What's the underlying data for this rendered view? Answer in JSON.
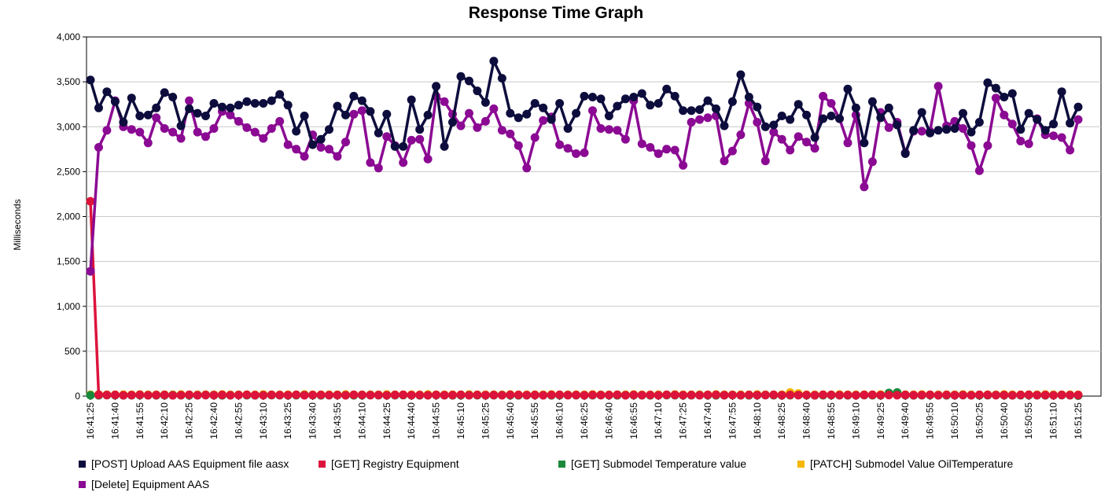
{
  "chart_data": {
    "type": "line",
    "title": "Response Time Graph",
    "xlabel": "",
    "ylabel": "Milliseconds",
    "ylim": [
      0,
      4000
    ],
    "yticks": [
      "0",
      "500",
      "1,000",
      "1,500",
      "2,000",
      "2,500",
      "3,000",
      "3,500",
      "4,000"
    ],
    "ytick_values": [
      0,
      500,
      1000,
      1500,
      2000,
      2500,
      3000,
      3500,
      4000
    ],
    "x_start": "16:41:25",
    "x_end": "16:51:40",
    "x_step_seconds": 5,
    "xtick_labels": [
      "16:41:25",
      "16:41:40",
      "16:41:55",
      "16:42:10",
      "16:42:25",
      "16:42:40",
      "16:42:55",
      "16:43:10",
      "16:43:25",
      "16:43:40",
      "16:43:55",
      "16:44:10",
      "16:44:25",
      "16:44:40",
      "16:44:55",
      "16:45:10",
      "16:45:25",
      "16:45:40",
      "16:45:55",
      "16:46:10",
      "16:46:25",
      "16:46:40",
      "16:46:55",
      "16:47:10",
      "16:47:25",
      "16:47:40",
      "16:47:55",
      "16:48:10",
      "16:48:25",
      "16:48:40",
      "16:48:55",
      "16:49:10",
      "16:49:25",
      "16:49:40",
      "16:49:55",
      "16:50:10",
      "16:50:25",
      "16:50:40",
      "16:50:55",
      "16:51:10",
      "16:51:25"
    ],
    "grid": true,
    "legend_position": "bottom",
    "series": [
      {
        "name": "[POST] Upload AAS Equipment file aasx",
        "color": "#0d0d3d",
        "values": [
          3520,
          3210,
          3390,
          3280,
          3050,
          3320,
          3120,
          3130,
          3210,
          3380,
          3330,
          3010,
          3200,
          3150,
          3120,
          3260,
          3220,
          3210,
          3240,
          3280,
          3260,
          3260,
          3290,
          3360,
          3240,
          2950,
          3120,
          2800,
          2860,
          2970,
          3230,
          3130,
          3340,
          3290,
          3170,
          2930,
          3140,
          2780,
          2780,
          3300,
          2970,
          3130,
          3450,
          2780,
          3050,
          3560,
          3510,
          3400,
          3270,
          3730,
          3540,
          3150,
          3100,
          3140,
          3260,
          3210,
          3080,
          3260,
          2980,
          3150,
          3340,
          3330,
          3310,
          3120,
          3230,
          3310,
          3330,
          3370,
          3240,
          3260,
          3420,
          3340,
          3180,
          3180,
          3190,
          3290,
          3200,
          3010,
          3280,
          3580,
          3330,
          3220,
          3000,
          3020,
          3120,
          3080,
          3250,
          3130,
          2880,
          3090,
          3120,
          3090,
          3420,
          3210,
          2820,
          3280,
          3100,
          3210,
          3020,
          2700,
          2960,
          3160,
          2930,
          2960,
          2970,
          2980,
          3150,
          2940,
          3050,
          3490,
          3430,
          3330,
          3370,
          2970,
          3150,
          3080,
          2960,
          3030,
          3390,
          3040,
          3220
        ]
      },
      {
        "name": "[GET] Registry Equipment",
        "color": "#dc143c",
        "values": [
          2170,
          15,
          12,
          13,
          10,
          11,
          14,
          10,
          12,
          13,
          9,
          11,
          14,
          10,
          12,
          11,
          13,
          10,
          12,
          14,
          11,
          10,
          13,
          12,
          11,
          14,
          10,
          12,
          13,
          11,
          12,
          10,
          14,
          13,
          11,
          12,
          10,
          13,
          14,
          11,
          12,
          10,
          13,
          11,
          12,
          14,
          10,
          13,
          11,
          12,
          10,
          14,
          13,
          11,
          12,
          10,
          13,
          14,
          11,
          12,
          10,
          13,
          11,
          12,
          14,
          10,
          13,
          11,
          12,
          10,
          14,
          13,
          11,
          12,
          10,
          13,
          14,
          11,
          12,
          10,
          13,
          11,
          12,
          14,
          10,
          13,
          11,
          12,
          10,
          14,
          13,
          11,
          12,
          10,
          13,
          14,
          11,
          12,
          10,
          13,
          11,
          12,
          14,
          10,
          13,
          11,
          12,
          10,
          14,
          13,
          11,
          12,
          10,
          13,
          14,
          11,
          12,
          10,
          13,
          11,
          12
        ]
      },
      {
        "name": "[GET] Submodel Temperature value",
        "color": "#1a8a3a",
        "values": [
          10,
          9,
          11,
          10,
          9,
          10,
          11,
          10,
          9,
          10,
          11,
          10,
          9,
          10,
          11,
          10,
          9,
          10,
          12,
          10,
          9,
          10,
          11,
          10,
          9,
          10,
          11,
          10,
          9,
          10,
          11,
          10,
          9,
          10,
          11,
          10,
          9,
          10,
          11,
          10,
          9,
          10,
          11,
          10,
          9,
          10,
          11,
          10,
          9,
          10,
          11,
          10,
          9,
          10,
          11,
          10,
          9,
          10,
          11,
          10,
          9,
          10,
          11,
          10,
          9,
          10,
          11,
          10,
          9,
          10,
          11,
          10,
          9,
          10,
          11,
          10,
          9,
          10,
          11,
          10,
          9,
          10,
          11,
          10,
          9,
          10,
          11,
          10,
          9,
          10,
          11,
          10,
          9,
          10,
          11,
          10,
          9,
          35,
          40,
          10,
          9,
          10,
          11,
          10,
          9,
          10,
          11,
          10,
          9,
          10,
          11,
          10,
          9,
          10,
          11,
          10,
          9,
          10,
          11,
          10,
          5
        ]
      },
      {
        "name": "[PATCH] Submodel Value OilTemperature",
        "color": "#f5b800",
        "values": [
          15,
          18,
          16,
          15,
          17,
          16,
          18,
          15,
          16,
          17,
          15,
          18,
          16,
          15,
          17,
          16,
          18,
          15,
          16,
          17,
          15,
          18,
          16,
          15,
          17,
          16,
          18,
          15,
          16,
          17,
          15,
          18,
          16,
          15,
          17,
          16,
          18,
          15,
          16,
          17,
          15,
          18,
          16,
          15,
          17,
          16,
          18,
          15,
          16,
          17,
          15,
          18,
          16,
          15,
          17,
          16,
          18,
          15,
          16,
          17,
          15,
          18,
          16,
          15,
          17,
          16,
          18,
          15,
          16,
          17,
          15,
          18,
          16,
          15,
          17,
          16,
          18,
          15,
          16,
          17,
          15,
          18,
          16,
          15,
          17,
          40,
          30,
          15,
          16,
          17,
          15,
          18,
          16,
          15,
          17,
          16,
          18,
          15,
          16,
          17,
          15,
          18,
          16,
          15,
          17,
          16,
          18,
          15,
          16,
          17,
          15,
          18,
          16,
          15,
          17,
          16,
          18,
          15,
          16,
          17,
          15
        ]
      },
      {
        "name": "[Delete] Equipment AAS",
        "color": "#8b0a93",
        "values": [
          1390,
          2770,
          2960,
          3290,
          3000,
          2970,
          2940,
          2820,
          3100,
          2980,
          2940,
          2870,
          3290,
          2940,
          2890,
          2980,
          3170,
          3130,
          3060,
          2990,
          2940,
          2870,
          2980,
          3060,
          2800,
          2750,
          2670,
          2910,
          2770,
          2750,
          2670,
          2830,
          3140,
          3180,
          2600,
          2540,
          2890,
          2790,
          2600,
          2850,
          2860,
          2640,
          3340,
          3280,
          3140,
          3010,
          3150,
          2990,
          3060,
          3200,
          2960,
          2920,
          2790,
          2540,
          2880,
          3070,
          3110,
          2800,
          2760,
          2700,
          2710,
          3180,
          2980,
          2970,
          2960,
          2860,
          3290,
          2810,
          2770,
          2700,
          2750,
          2740,
          2570,
          3050,
          3080,
          3100,
          3120,
          2620,
          2730,
          2910,
          3260,
          3050,
          2620,
          2940,
          2860,
          2740,
          2890,
          2830,
          2760,
          3340,
          3260,
          3090,
          2820,
          3130,
          2330,
          2610,
          3160,
          2990,
          3050,
          2710,
          2950,
          2950,
          2950,
          3450,
          3010,
          3060,
          2980,
          2790,
          2510,
          2790,
          3320,
          3130,
          3030,
          2840,
          2810,
          3090,
          2910,
          2900,
          2880,
          2740,
          3080
        ]
      }
    ]
  }
}
